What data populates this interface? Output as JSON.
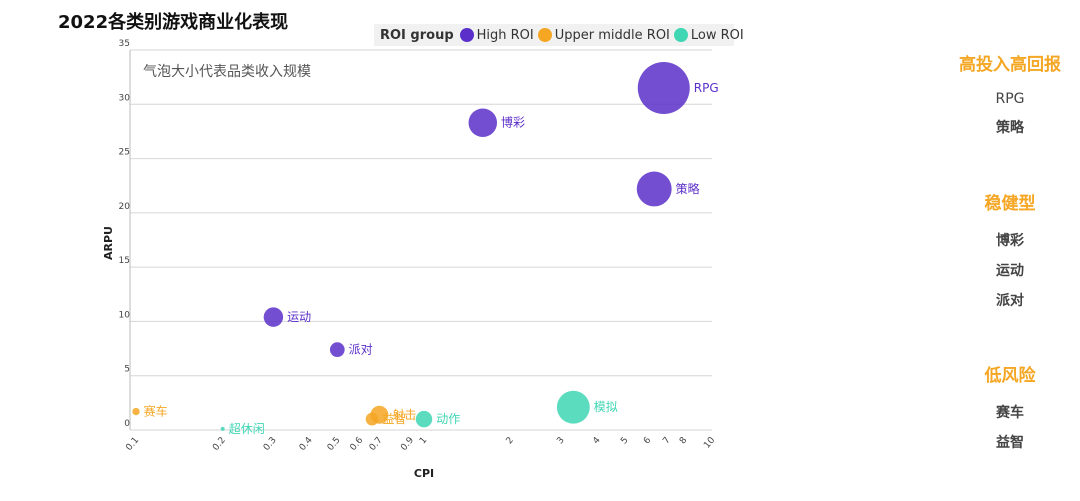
{
  "chart_data": {
    "type": "scatter",
    "title": "2022各类别游戏商业化表现",
    "annotation": "气泡大小代表品类收入规模",
    "xlabel": "CPI",
    "ylabel": "ARPU",
    "x_scale": "log",
    "xlim": [
      0.1,
      10
    ],
    "ylim": [
      0,
      35
    ],
    "x_ticks": [
      "0.1",
      "0.2",
      "0.3",
      "0.4",
      "0.5",
      "0.6",
      "0.7",
      "0.9",
      "1",
      "2",
      "3",
      "4",
      "5",
      "6",
      "7",
      "8",
      "10"
    ],
    "y_ticks": [
      "0",
      "5",
      "10",
      "15",
      "20",
      "25",
      "30",
      "35"
    ],
    "grid": "horizontal",
    "legend": {
      "title": "ROI group",
      "position": "top",
      "entries": [
        {
          "name": "High ROI",
          "color": "#5b2fc9"
        },
        {
          "name": "Upper middle ROI",
          "color": "#f5a623"
        },
        {
          "name": "Low ROI",
          "color": "#3fd6b4"
        }
      ]
    },
    "series": [
      {
        "name": "High ROI",
        "color": "#5b2fc9",
        "points": [
          {
            "label": "RPG",
            "x": 6.8,
            "y": 31.5,
            "size": 100
          },
          {
            "label": "博彩",
            "x": 1.6,
            "y": 28.3,
            "size": 30
          },
          {
            "label": "策略",
            "x": 6.3,
            "y": 22.2,
            "size": 45
          },
          {
            "label": "运动",
            "x": 0.3,
            "y": 10.4,
            "size": 14
          },
          {
            "label": "派对",
            "x": 0.5,
            "y": 7.4,
            "size": 8
          }
        ]
      },
      {
        "name": "Upper middle ROI",
        "color": "#f5a623",
        "points": [
          {
            "label": "赛车",
            "x": 0.1,
            "y": 1.7,
            "size": 2
          },
          {
            "label": "射击",
            "x": 0.7,
            "y": 1.4,
            "size": 12
          },
          {
            "label": "益智",
            "x": 0.66,
            "y": 1.0,
            "size": 6
          }
        ]
      },
      {
        "name": "Low ROI",
        "color": "#3fd6b4",
        "points": [
          {
            "label": "超休闲",
            "x": 0.2,
            "y": 0.1,
            "size": 0.5
          },
          {
            "label": "动作",
            "x": 1.0,
            "y": 1.0,
            "size": 10
          },
          {
            "label": "模拟",
            "x": 3.3,
            "y": 2.1,
            "size": 40
          }
        ]
      }
    ]
  },
  "side_panel": {
    "groups": [
      {
        "heading": "高投入高回报",
        "items": [
          {
            "text": "RPG",
            "bold": false
          },
          {
            "text": "策略",
            "bold": true
          }
        ]
      },
      {
        "heading": "稳健型",
        "items": [
          {
            "text": "博彩",
            "bold": true
          },
          {
            "text": "运动",
            "bold": true
          },
          {
            "text": "派对",
            "bold": true
          }
        ]
      },
      {
        "heading": "低风险",
        "items": [
          {
            "text": "赛车",
            "bold": true
          },
          {
            "text": "益智",
            "bold": true
          }
        ]
      }
    ]
  }
}
